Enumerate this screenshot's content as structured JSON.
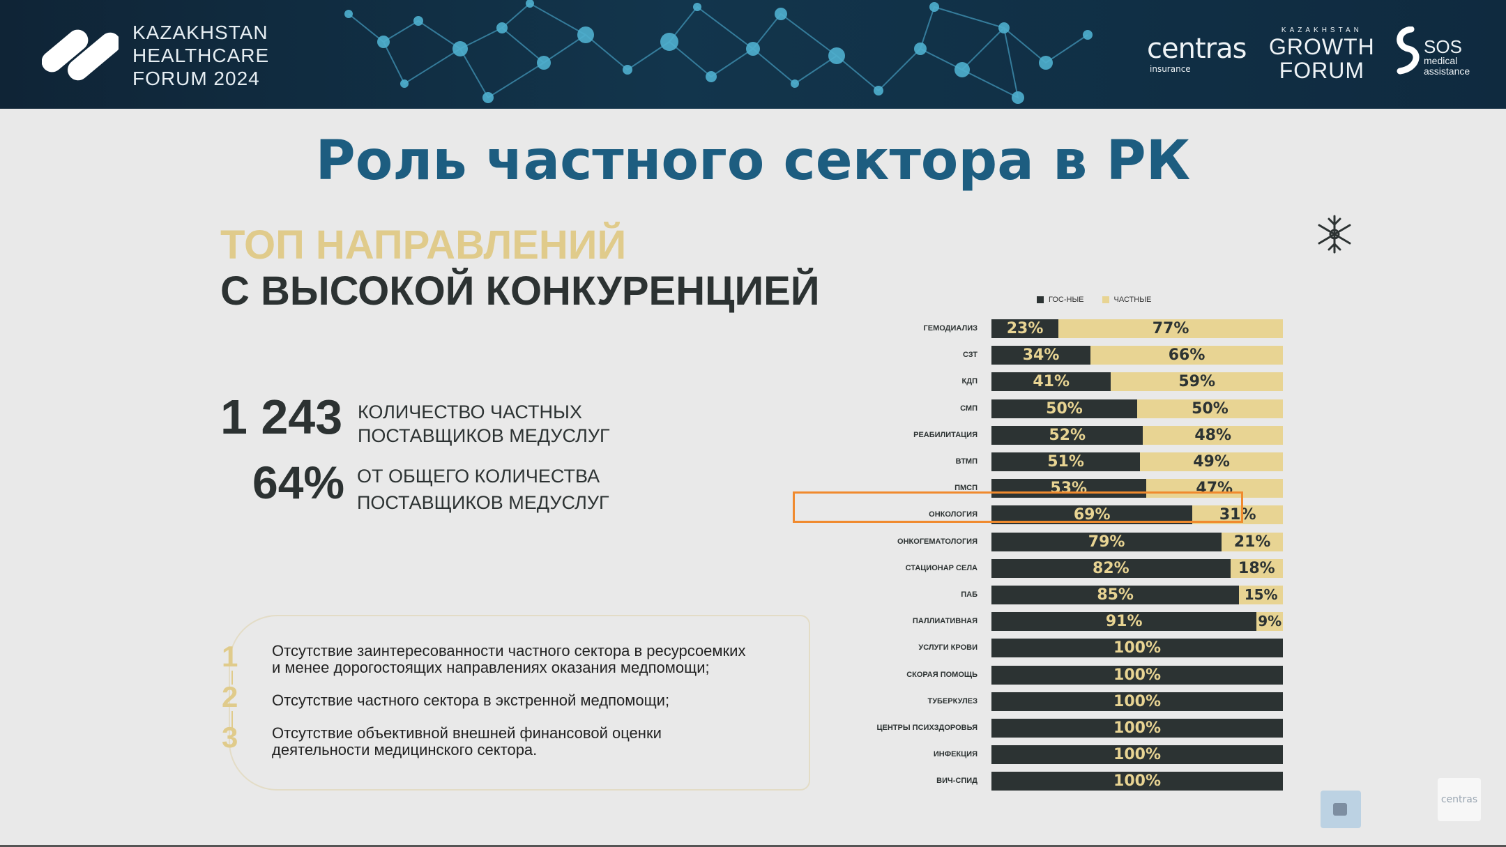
{
  "header": {
    "forum_lines": [
      "KAZAKHSTAN",
      "HEALTHCARE",
      "FORUM 2024"
    ],
    "partner1": {
      "name": "centras",
      "sub": "insurance"
    },
    "partner2": {
      "top": "KAZAKHSTAN",
      "line1": "GROWTH",
      "line2": "FORUM"
    },
    "partner3": {
      "name": "SOS",
      "line1": "medical",
      "line2": "assistance"
    }
  },
  "slide": {
    "title": "Роль частного сектора в РК",
    "subtitle_line1": "ТОП НАПРАВЛЕНИЙ",
    "subtitle_line2": "С ВЫСОКОЙ КОНКУРЕНЦИЕЙ",
    "stats": [
      {
        "value": "1 243",
        "desc_line1": "КОЛИЧЕСТВО ЧАСТНЫХ",
        "desc_line2": "ПОСТАВЩИКОВ МЕДУСЛУГ"
      },
      {
        "value": "64%",
        "desc_line1": "ОТ ОБЩЕГО КОЛИЧЕСТВА",
        "desc_line2": "ПОСТАВЩИКОВ МЕДУСЛУГ"
      }
    ],
    "notes": [
      {
        "num": "1",
        "line1": "Отсутствие заинтересованности частного сектора в ресурсоемких",
        "line2": "и менее дорогостоящих направлениях оказания медпомощи;"
      },
      {
        "num": "2",
        "line1": "Отсутствие частного сектора в экстренной медпомощи;",
        "line2": ""
      },
      {
        "num": "3",
        "line1": "Отсутствие объективной внешней финансовой оценки",
        "line2": "деятельности медицинского сектора."
      }
    ],
    "watermark": "centras"
  },
  "colors": {
    "gov": "#2c3333",
    "private": "#e8d493",
    "title": "#1d5d80",
    "accent": "#e0cb8b",
    "highlight": "#f08a2e"
  },
  "icons": [
    "kazakhstan-healthcare-forum-logo",
    "snowflake-ornament-icon",
    "video-call-icon"
  ],
  "chart_data": {
    "type": "bar",
    "orientation": "horizontal",
    "stacked": true,
    "categories": [
      "ГЕМОДИАЛИЗ",
      "СЗТ",
      "КДП",
      "СМП",
      "РЕАБИЛИТАЦИЯ",
      "ВТМП",
      "ПМСП",
      "ОНКОЛОГИЯ",
      "ОНКОГЕМАТОЛОГИЯ",
      "СТАЦИОНАР СЕЛА",
      "ПАБ",
      "ПАЛЛИАТИВНАЯ",
      "УСЛУГИ КРОВИ",
      "СКОРАЯ ПОМОЩЬ",
      "ТУБЕРКУЛЕЗ",
      "ЦЕНТРЫ ПСИХЗДОРОВЬЯ",
      "ИНФЕКЦИЯ",
      "ВИЧ-СПИД"
    ],
    "series": [
      {
        "name": "ГОС-НЫЕ",
        "values": [
          23,
          34,
          41,
          50,
          52,
          51,
          53,
          69,
          79,
          82,
          85,
          91,
          100,
          100,
          100,
          100,
          100,
          100
        ]
      },
      {
        "name": "ЧАСТНЫЕ",
        "values": [
          77,
          66,
          59,
          50,
          48,
          49,
          47,
          31,
          21,
          18,
          15,
          9,
          0,
          0,
          0,
          0,
          0,
          0
        ]
      }
    ],
    "legend": "top",
    "highlighted_category": "ОНКОЛОГИЯ",
    "xlim": [
      0,
      100
    ]
  }
}
